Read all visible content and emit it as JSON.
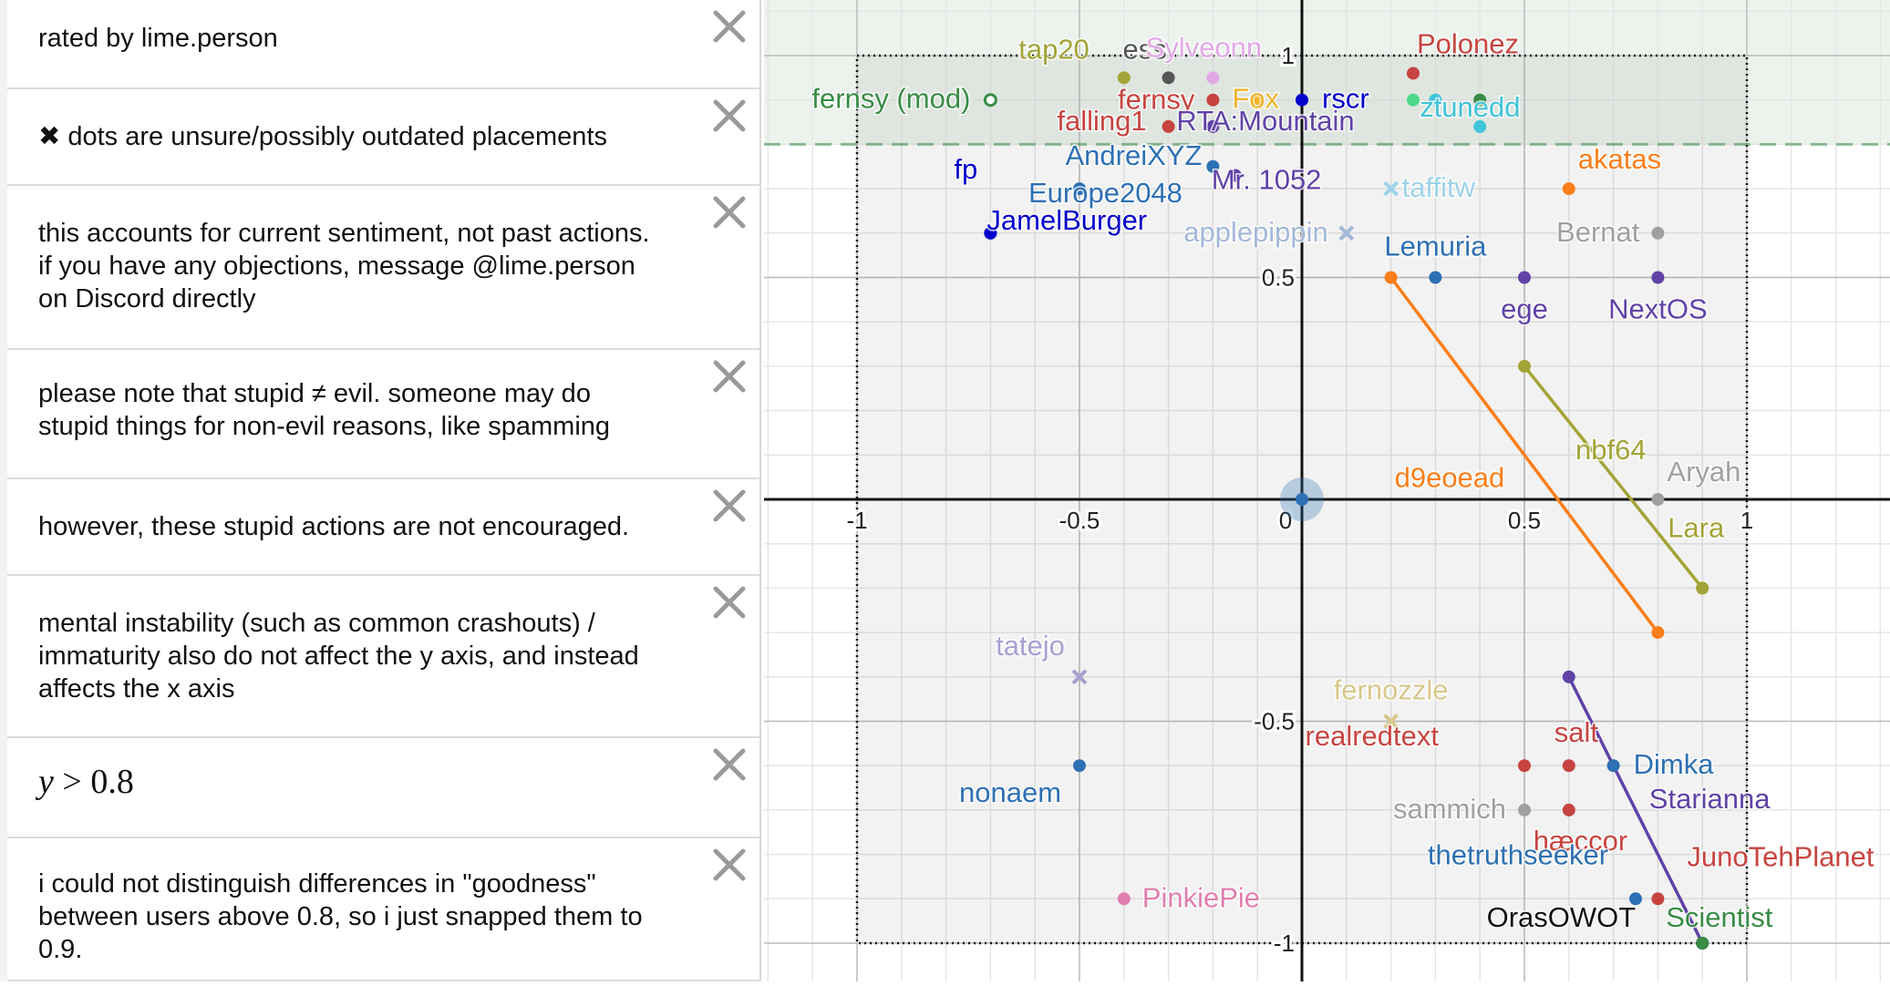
{
  "sidebar": {
    "items": [
      {
        "text": "rated by lime.person"
      },
      {
        "text": "✖ dots are unsure/possibly outdated placements"
      },
      {
        "text": "this accounts for current sentiment, not past actions. if you have any objections, message @lime.person on Discord directly"
      },
      {
        "text": "please note that stupid ≠ evil. someone may do stupid things for non-evil reasons, like spamming"
      },
      {
        "text": "however, these stupid actions are not encouraged."
      },
      {
        "text": "mental instability (such as common crashouts) / immaturity also do not affect the y axis, and instead affects the x axis"
      },
      {
        "text": "y > 0.8",
        "math": true,
        "var": "y",
        "op": " > ",
        "num": "0.8"
      },
      {
        "text": "i could not distinguish differences in \"goodness\" between users above 0.8, so i just snapped them to 0.9."
      }
    ]
  },
  "chart_data": {
    "type": "scatter",
    "xlim": [
      -1.2,
      1.3
    ],
    "ylim": [
      -1.1,
      1.12
    ],
    "grid": true,
    "x_ticks": [
      -1,
      -0.5,
      0,
      0.5,
      1
    ],
    "y_ticks": [
      -1,
      -0.5,
      0.5,
      1
    ],
    "x_tick_labels": [
      "-1",
      "-0.5",
      "0",
      "0.5",
      "1"
    ],
    "y_tick_labels": [
      "-1",
      "-0.5",
      "0.5",
      "1"
    ],
    "shaded_region": {
      "condition": "y > 0.8",
      "color": "#388c46"
    },
    "bounding_box": {
      "x": [
        -1,
        1
      ],
      "y": [
        -1,
        1
      ]
    },
    "points": [
      {
        "label": "fernsy (mod)",
        "x": -0.7,
        "y": 0.9,
        "color": "#388c46",
        "hollow": true,
        "label_side": "left"
      },
      {
        "label": "tap20",
        "x": -0.4,
        "y": 0.95,
        "color": "#a3a337",
        "label_side": "none"
      },
      {
        "label": "ess",
        "x": -0.3,
        "y": 0.95,
        "color": "#555555",
        "label_side": "none"
      },
      {
        "label": "Sylveonn",
        "x": -0.2,
        "y": 0.95,
        "color": "#e2a8e6",
        "label_side": "none"
      },
      {
        "label": "Polonez",
        "x": 0.25,
        "y": 0.96,
        "color": "#c74440",
        "label_side": "none"
      },
      {
        "label": "fernsy",
        "x": -0.2,
        "y": 0.9,
        "color": "#c74440",
        "label_side": "left"
      },
      {
        "label": "Fox",
        "x": -0.1,
        "y": 0.9,
        "color": "#f0b429",
        "label_side": "none"
      },
      {
        "label": "rscr",
        "x": 0.0,
        "y": 0.9,
        "color": "#0000cc",
        "label_side": "right"
      },
      {
        "label": "",
        "x": 0.25,
        "y": 0.9,
        "color": "#4ed88a",
        "label_side": "none"
      },
      {
        "label": "",
        "x": 0.3,
        "y": 0.9,
        "color": "#40c4d8",
        "label_side": "none"
      },
      {
        "label": "",
        "x": 0.4,
        "y": 0.9,
        "color": "#388c46",
        "label_side": "none"
      },
      {
        "label": "falling1",
        "x": -0.3,
        "y": 0.84,
        "color": "#c74440",
        "label_side": "none"
      },
      {
        "label": "RTA:Mountain",
        "x": -0.2,
        "y": 0.84,
        "color": "#6042a6",
        "label_side": "none"
      },
      {
        "label": "ztunedd",
        "x": 0.4,
        "y": 0.84,
        "color": "#40c4d8",
        "label_side": "none"
      },
      {
        "label": "AndreiXYZ",
        "x": -0.2,
        "y": 0.75,
        "color": "#2d70b3",
        "label_side": "left"
      },
      {
        "label": "Mr. 1052",
        "x": -0.15,
        "y": 0.73,
        "color": "#6042a6",
        "label_side": "none"
      },
      {
        "label": "akatas",
        "x": 0.6,
        "y": 0.7,
        "color": "#fa7e19",
        "label_side": "right"
      },
      {
        "label": "taffitw",
        "x": 0.2,
        "y": 0.7,
        "color": "#9dd3e8",
        "marker": "x",
        "label_side": "right"
      },
      {
        "label": "Europe2048",
        "x": -0.5,
        "y": 0.7,
        "color": "#2d70b3",
        "label_side": "right"
      },
      {
        "label": "fp",
        "x": -0.7,
        "y": 0.6,
        "color": "#0000cc",
        "label_side": "none"
      },
      {
        "label": "JamelBurger",
        "x": -0.7,
        "y": 0.6,
        "color": "#0000cc",
        "label_side": "right"
      },
      {
        "label": "applepippin",
        "x": 0.1,
        "y": 0.6,
        "color": "#a3b8d8",
        "marker": "x",
        "label_side": "left"
      },
      {
        "label": "Bernat",
        "x": 0.8,
        "y": 0.6,
        "color": "#a0a0a0",
        "label_side": "left"
      },
      {
        "label": "Lemuria",
        "x": 0.3,
        "y": 0.5,
        "color": "#2d70b3",
        "label_side": "above"
      },
      {
        "label": "ege",
        "x": 0.5,
        "y": 0.5,
        "color": "#6042a6",
        "label_side": "below"
      },
      {
        "label": "NextOS",
        "x": 0.8,
        "y": 0.5,
        "color": "#6042a6",
        "label_side": "below"
      },
      {
        "label": "d9eoead",
        "x": 0.2,
        "y": 0.5,
        "color": "#fa7e19",
        "label_side": "none"
      },
      {
        "label": "nbf64",
        "x": 0.5,
        "y": 0.3,
        "color": "#a3a337",
        "label_side": "none"
      },
      {
        "label": "Aryah",
        "x": 0.8,
        "y": 0.0,
        "color": "#a0a0a0",
        "label_side": "right"
      },
      {
        "label": "Lara",
        "x": 0.9,
        "y": -0.2,
        "color": "#a3a337",
        "label_side": "none"
      },
      {
        "label": "",
        "x": 0.8,
        "y": -0.3,
        "color": "#fa7e19",
        "label_side": "none"
      },
      {
        "label": "",
        "x": 0.0,
        "y": 0.0,
        "color": "#2d70b3",
        "label_side": "none",
        "origin": true
      },
      {
        "label": "tatejo",
        "x": -0.5,
        "y": -0.4,
        "color": "#a8a0d0",
        "marker": "x",
        "label_side": "above"
      },
      {
        "label": "fernozzle",
        "x": 0.2,
        "y": -0.5,
        "color": "#d8c88a",
        "marker": "x",
        "label_side": "above"
      },
      {
        "label": "realredtext",
        "x": 0.5,
        "y": -0.6,
        "color": "#c74440",
        "label_side": "none"
      },
      {
        "label": "salt",
        "x": 0.6,
        "y": -0.6,
        "color": "#c74440",
        "label_side": "none"
      },
      {
        "label": "Dimka",
        "x": 0.7,
        "y": -0.6,
        "color": "#2d70b3",
        "label_side": "right"
      },
      {
        "label": "nonaem",
        "x": -0.5,
        "y": -0.6,
        "color": "#2d70b3",
        "label_side": "below"
      },
      {
        "label": "sammich",
        "x": 0.5,
        "y": -0.7,
        "color": "#a0a0a0",
        "label_side": "left"
      },
      {
        "label": "hæccor",
        "x": 0.6,
        "y": -0.7,
        "color": "#c74440",
        "label_side": "none"
      },
      {
        "label": "Starianna",
        "x": 0.6,
        "y": -0.4,
        "color": "#6042a6",
        "label_side": "none"
      },
      {
        "label": "thetruthseeker",
        "x": 0.75,
        "y": -0.9,
        "color": "#2d70b3",
        "label_side": "none"
      },
      {
        "label": "JunoTehPlanet",
        "x": 0.8,
        "y": -0.9,
        "color": "#c74440",
        "label_side": "none"
      },
      {
        "label": "PinkiePie",
        "x": -0.4,
        "y": -0.9,
        "color": "#e07fae",
        "label_side": "right"
      },
      {
        "label": "OrasOWOT",
        "x": 0.9,
        "y": -1.0,
        "color": "#111111",
        "label_side": "none"
      },
      {
        "label": "Scientist",
        "x": 0.9,
        "y": -1.0,
        "color": "#388c46",
        "label_side": "none"
      }
    ],
    "segments": [
      {
        "from": [
          0.2,
          0.5
        ],
        "to": [
          0.8,
          -0.3
        ],
        "color": "#fa7e19"
      },
      {
        "from": [
          0.5,
          0.3
        ],
        "to": [
          0.9,
          -0.2
        ],
        "color": "#a3a337"
      },
      {
        "from": [
          0.6,
          -0.4
        ],
        "to": [
          0.9,
          -1.0
        ],
        "color": "#6042a6"
      }
    ]
  }
}
